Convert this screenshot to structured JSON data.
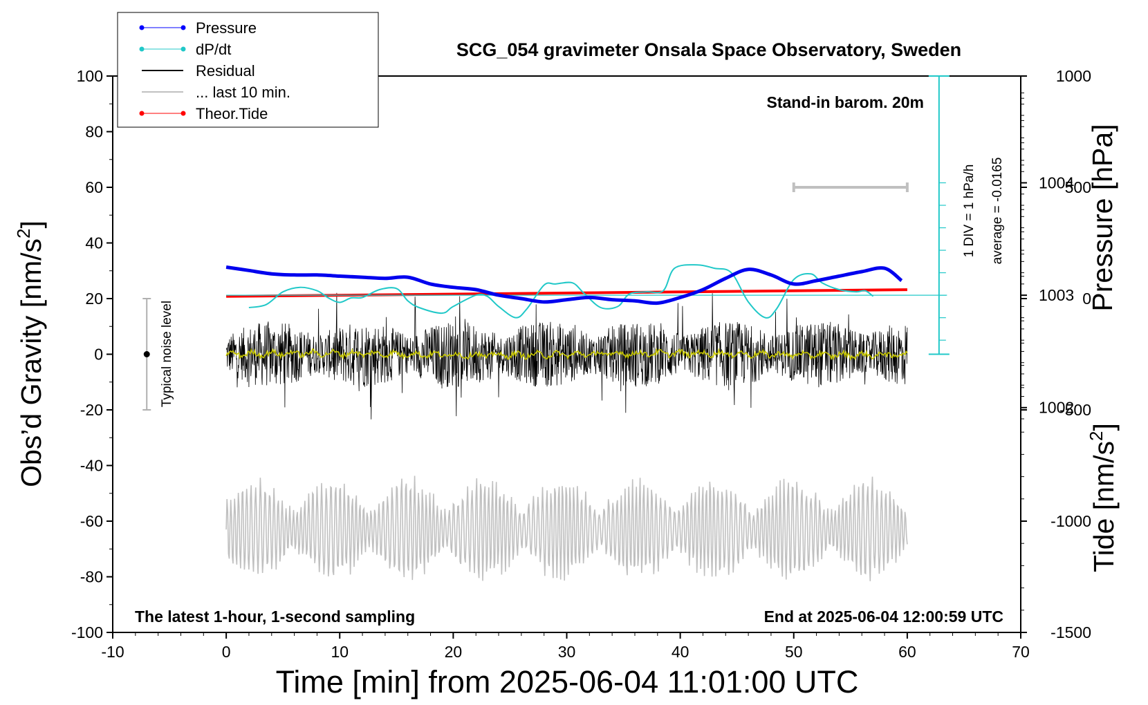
{
  "chart_data": {
    "type": "line",
    "title": "SCG_054 gravimeter Onsala Space Observatory, Sweden",
    "xlabel": "Time [min] from 2025-06-04 11:01:00 UTC",
    "ylabel_main": "Obs’d Gravity [nm/s",
    "ylabel_sup": "2",
    "ylabel_close": "]",
    "xlim": [
      -10,
      70
    ],
    "ylim": [
      -100,
      100
    ],
    "x_ticks": [
      -10,
      0,
      10,
      20,
      30,
      40,
      50,
      60,
      70
    ],
    "y_ticks": [
      -100,
      -80,
      -60,
      -40,
      -20,
      0,
      20,
      40,
      60,
      80,
      100
    ],
    "pressure_axis": {
      "label": "Pressure [hPa]",
      "ticks": [
        1002,
        1003,
        1004
      ],
      "range": [
        1000,
        1004.95
      ]
    },
    "tide_axis": {
      "label_main": "Tide [nm/s",
      "label_sup": "2",
      "label_close": "]",
      "ticks": [
        -1500,
        -1000,
        -500,
        0,
        500,
        1000
      ],
      "range": [
        -1500,
        1000
      ]
    },
    "legend": [
      "Pressure",
      "dP/dt",
      "Residual",
      "... last 10 min.",
      "Theor.Tide"
    ],
    "annotations": {
      "barometer": "Stand-in barom. 20m",
      "div_scale": "1 DIV = 1 hPa/h",
      "average": "average = -0.0165",
      "noise": "Typical noise level",
      "left_note": "The latest 1-hour, 1-second sampling",
      "right_note": "End at 2025-06-04 12:00:59 UTC"
    },
    "noise_bar": {
      "x": -7,
      "range": [
        -20,
        20
      ]
    },
    "last10_range": [
      50,
      60
    ],
    "pressure": {
      "name": "Pressure",
      "x": [
        0,
        2,
        4,
        6,
        8,
        10,
        12,
        14,
        16,
        18,
        20,
        22,
        24,
        26,
        28,
        30,
        32,
        34,
        36,
        38,
        40,
        42,
        44,
        46,
        48,
        50,
        52,
        54,
        56,
        58,
        59.5
      ],
      "values": [
        1003.25,
        1003.22,
        1003.19,
        1003.18,
        1003.18,
        1003.17,
        1003.16,
        1003.15,
        1003.16,
        1003.1,
        1003.07,
        1003.05,
        1003.0,
        1002.97,
        1002.94,
        1002.96,
        1002.98,
        1002.96,
        1002.95,
        1002.93,
        1002.98,
        1003.05,
        1003.15,
        1003.23,
        1003.18,
        1003.1,
        1003.13,
        1003.17,
        1003.21,
        1003.24,
        1003.13
      ]
    },
    "dpdt": {
      "name": "dP/dt",
      "x": [
        2,
        3.5,
        5,
        6.5,
        8,
        9,
        10,
        11,
        12,
        13.5,
        15,
        16,
        17,
        19,
        20,
        22,
        23,
        24,
        25.5,
        26.5,
        28,
        29,
        30.5,
        31.5,
        33,
        34.5,
        35.5,
        37,
        38.5,
        39.5,
        41.5,
        43,
        44.5,
        46,
        47.5,
        48.5,
        50,
        51.5,
        52.5,
        54,
        55.5,
        56.3,
        57
      ],
      "values": [
        -0.55,
        -0.42,
        0.15,
        0.35,
        0.2,
        -0.12,
        -0.32,
        -0.12,
        -0.1,
        0.25,
        0.3,
        -0.25,
        -0.55,
        -0.8,
        -0.5,
        0.0,
        -0.05,
        -0.5,
        -1.0,
        -0.6,
        0.45,
        0.5,
        0.55,
        0.1,
        -0.55,
        -0.5,
        0.05,
        0.15,
        0.2,
        1.2,
        1.35,
        1.2,
        1.0,
        -0.3,
        -1.0,
        -0.6,
        0.7,
        0.95,
        0.55,
        0.25,
        0.15,
        0.2,
        -0.05
      ]
    },
    "tide": {
      "name": "Theor.Tide",
      "x": [
        0,
        60
      ],
      "values": [
        10,
        40
      ]
    },
    "residual": {
      "name": "Residual",
      "x_range": [
        0,
        60
      ],
      "amplitude_range": [
        -26,
        27
      ]
    },
    "last10": {
      "name": "... last 10 min.",
      "x_range": [
        0,
        60
      ],
      "center": -63,
      "amplitude": 20
    }
  }
}
